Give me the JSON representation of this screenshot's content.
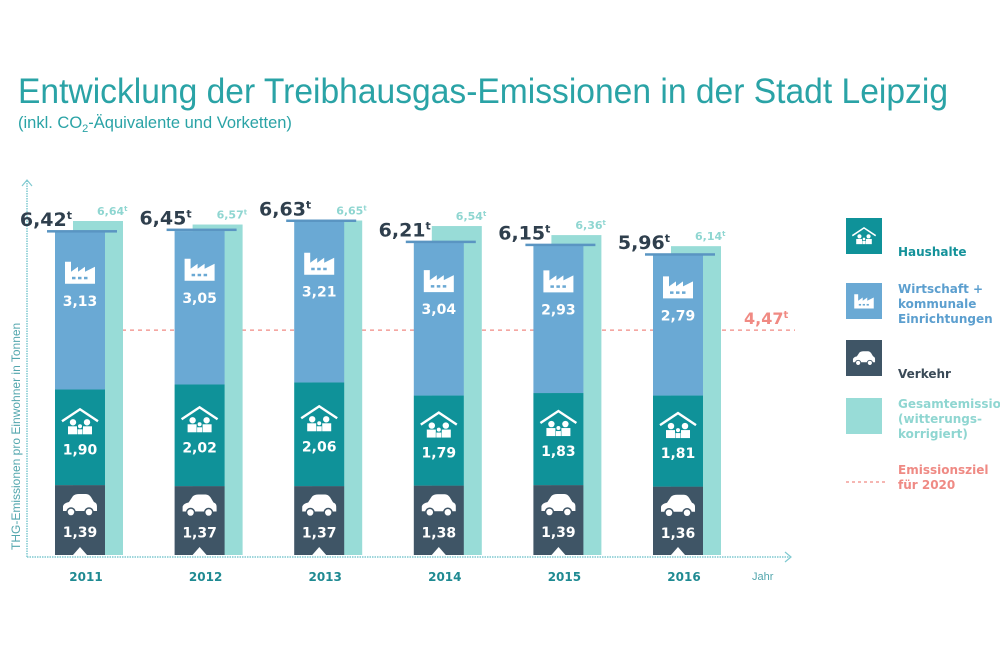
{
  "title": "Entwicklung der Treibhausgas-Emissionen in der Stadt Leipzig",
  "subtitle_pre": "(inkl. CO",
  "subtitle_sub": "2",
  "subtitle_post": "-Äquivalente und Vorketten)",
  "chart_data": {
    "type": "bar",
    "stacked": true,
    "title": "Entwicklung der Treibhausgas-Emissionen in der Stadt Leipzig",
    "ylabel": "THG-Emissionen pro Einwohner in Tonnen",
    "xlabel": "Jahr",
    "ylim": [
      0,
      7
    ],
    "grid": false,
    "legend_position": "right",
    "categories": [
      "2011",
      "2012",
      "2013",
      "2014",
      "2015",
      "2016"
    ],
    "series": [
      {
        "name": "Verkehr",
        "color": "#3f5566",
        "icon": "car-icon",
        "values": [
          1.39,
          1.37,
          1.37,
          1.38,
          1.39,
          1.36
        ],
        "labels": [
          "1,39",
          "1,37",
          "1,37",
          "1,38",
          "1,39",
          "1,36"
        ]
      },
      {
        "name": "Haushalte",
        "color": "#0f9299",
        "icon": "house-family-icon",
        "values": [
          1.9,
          2.02,
          2.06,
          1.79,
          1.83,
          1.81
        ],
        "labels": [
          "1,90",
          "2,02",
          "2,06",
          "1,79",
          "1,83",
          "1,81"
        ]
      },
      {
        "name": "Wirtschaft + kommunale Einrichtungen",
        "color": "#6aa9d4",
        "icon": "factory-icon",
        "values": [
          3.13,
          3.05,
          3.21,
          3.04,
          2.93,
          2.79
        ],
        "labels": [
          "3,13",
          "3,05",
          "3,21",
          "3,04",
          "2,93",
          "2,79"
        ]
      }
    ],
    "totals": {
      "values": [
        6.42,
        6.45,
        6.63,
        6.21,
        6.15,
        5.96
      ],
      "labels": [
        "6,42",
        "6,45",
        "6,63",
        "6,21",
        "6,15",
        "5,96"
      ],
      "unit": "t"
    },
    "corrected_totals": {
      "name": "Gesamtemission (witterungs-korrigiert)",
      "color": "#98dcd7",
      "values": [
        6.64,
        6.57,
        6.65,
        6.54,
        6.36,
        6.14
      ],
      "labels": [
        "6,64",
        "6,57",
        "6,65",
        "6,54",
        "6,36",
        "6,14"
      ],
      "unit": "t"
    },
    "target": {
      "name": "Emissionsziel für 2020",
      "value": 4.47,
      "label": "4,47",
      "unit": "t",
      "color": "#f08a83"
    }
  },
  "legend": [
    {
      "lines": [
        "Haushalte"
      ],
      "color": "#0f9299",
      "text_color": "#14929a",
      "icon": "house-family-icon"
    },
    {
      "lines": [
        "Wirtschaft +",
        "kommunale",
        "Einrichtungen"
      ],
      "color": "#6aa9d4",
      "text_color": "#5c9fcf",
      "icon": "factory-icon"
    },
    {
      "lines": [
        "Verkehr"
      ],
      "color": "#3f5566",
      "text_color": "#3a4a57",
      "icon": "car-icon"
    },
    {
      "lines": [
        "Gesamtemission",
        "(witterungs-",
        "korrigiert)"
      ],
      "color": "#98dcd7",
      "text_color": "#8fd6d1",
      "icon": ""
    },
    {
      "lines": [
        "Emissionsziel",
        "für 2020"
      ],
      "color": "#f08a83",
      "text_color": "#ef8a84",
      "icon": "dashed-line"
    }
  ]
}
